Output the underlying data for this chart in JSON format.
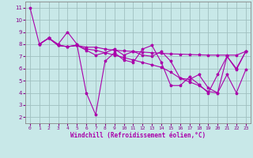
{
  "xlabel": "Windchill (Refroidissement éolien,°C)",
  "xlim": [
    -0.5,
    23.5
  ],
  "ylim": [
    1.5,
    11.5
  ],
  "xticks": [
    0,
    1,
    2,
    3,
    4,
    5,
    6,
    7,
    8,
    9,
    10,
    11,
    12,
    13,
    14,
    15,
    16,
    17,
    18,
    19,
    20,
    21,
    22,
    23
  ],
  "yticks": [
    2,
    3,
    4,
    5,
    6,
    7,
    8,
    9,
    10,
    11
  ],
  "bg_color": "#c8e8e8",
  "line_color": "#aa00aa",
  "grid_color": "#a0c0c0",
  "series": [
    {
      "x": [
        0,
        1,
        2,
        3,
        4,
        5,
        6,
        7,
        8,
        9,
        10,
        11,
        12,
        13,
        14,
        15,
        16,
        17,
        18,
        19,
        20,
        21,
        22,
        23
      ],
      "y": [
        11,
        8,
        8.5,
        8,
        9,
        8,
        4,
        2.2,
        6.6,
        7.3,
        6.7,
        6.5,
        7.6,
        7.9,
        6.5,
        4.6,
        4.6,
        5.3,
        4.7,
        4.0,
        5.5,
        7.0,
        5.9,
        7.4
      ]
    },
    {
      "x": [
        1,
        2,
        3,
        4,
        5,
        6,
        7,
        8,
        9,
        10,
        11,
        12,
        13,
        14,
        15,
        16,
        17,
        18,
        19,
        20,
        21,
        22,
        23
      ],
      "y": [
        8,
        8.5,
        7.9,
        7.8,
        7.9,
        7.75,
        7.75,
        7.6,
        7.5,
        7.45,
        7.4,
        7.35,
        7.3,
        7.25,
        7.2,
        7.18,
        7.15,
        7.12,
        7.1,
        7.1,
        7.1,
        7.1,
        7.4
      ]
    },
    {
      "x": [
        1,
        2,
        3,
        4,
        5,
        6,
        7,
        8,
        9,
        10,
        11,
        12,
        13,
        14,
        15,
        16,
        17,
        18,
        19,
        20,
        21,
        22,
        23
      ],
      "y": [
        8,
        8.5,
        7.9,
        7.8,
        7.9,
        7.6,
        7.5,
        7.3,
        7.1,
        6.9,
        6.7,
        6.5,
        6.3,
        6.1,
        5.7,
        5.2,
        4.9,
        4.6,
        4.1,
        4.0,
        5.5,
        4.0,
        5.9
      ]
    },
    {
      "x": [
        1,
        2,
        3,
        4,
        5,
        6,
        7,
        8,
        9,
        10,
        11,
        12,
        13,
        14,
        15,
        16,
        17,
        18,
        19,
        20,
        21,
        22,
        23
      ],
      "y": [
        8,
        8.5,
        7.9,
        7.8,
        7.9,
        7.5,
        7.1,
        7.3,
        7.6,
        7.1,
        7.4,
        7.1,
        7.0,
        7.4,
        6.6,
        5.2,
        5.1,
        5.5,
        4.4,
        4.0,
        7.0,
        6.0,
        7.4
      ]
    }
  ]
}
